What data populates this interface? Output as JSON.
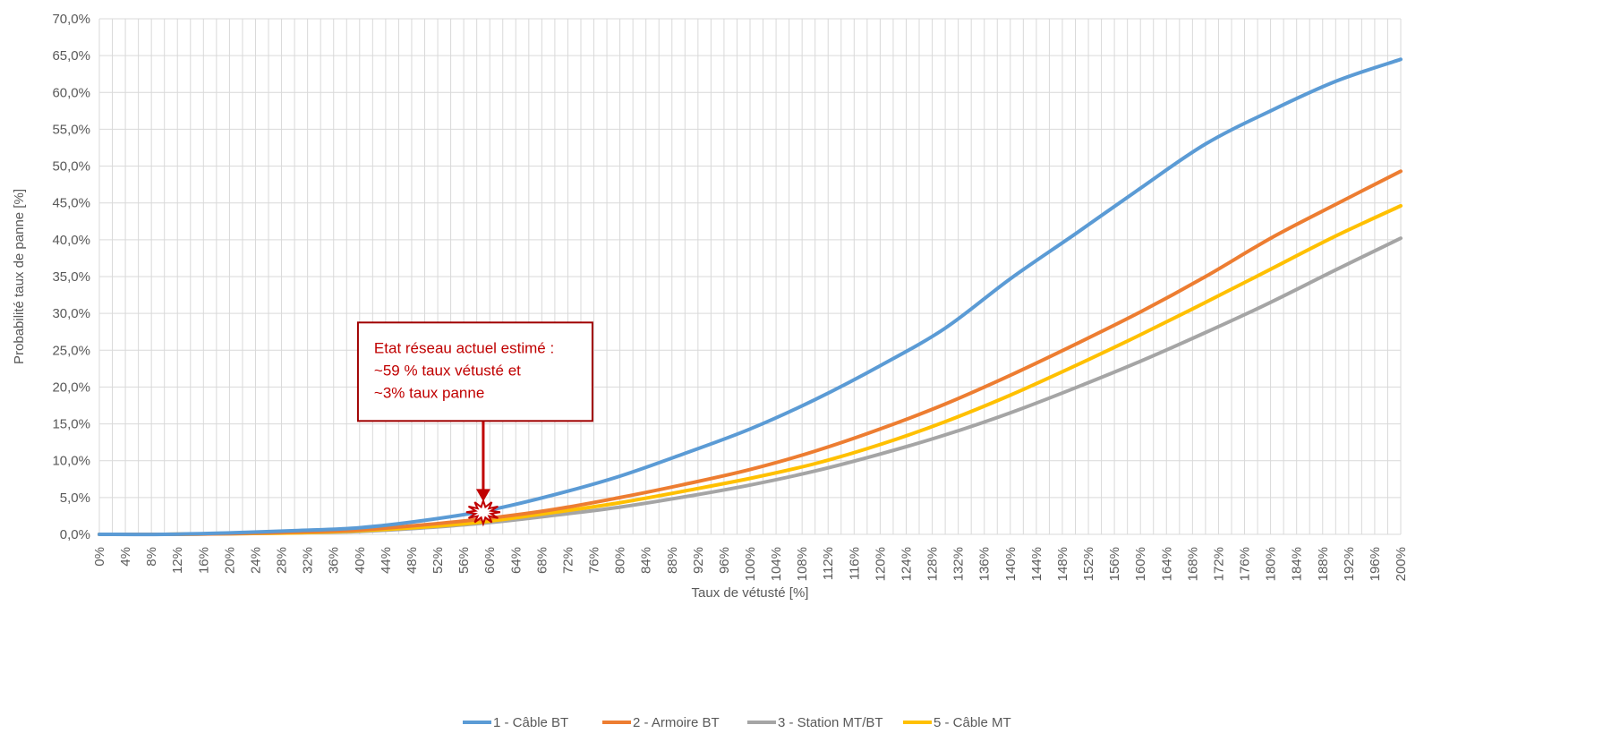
{
  "chart_data": {
    "type": "line",
    "xlabel": "Taux de vétusté [%]",
    "ylabel": "Probabilité taux de panne [%]",
    "xlim": [
      0,
      200
    ],
    "ylim": [
      0,
      70
    ],
    "grid": true,
    "legend_position": "bottom",
    "y_ticks": [
      "0,0%",
      "5,0%",
      "10,0%",
      "15,0%",
      "20,0%",
      "25,0%",
      "30,0%",
      "35,0%",
      "40,0%",
      "45,0%",
      "50,0%",
      "55,0%",
      "60,0%",
      "65,0%",
      "70,0%"
    ],
    "x_ticks": [
      "0%",
      "4%",
      "8%",
      "12%",
      "16%",
      "20%",
      "24%",
      "28%",
      "32%",
      "36%",
      "40%",
      "44%",
      "48%",
      "52%",
      "56%",
      "60%",
      "64%",
      "68%",
      "72%",
      "76%",
      "80%",
      "84%",
      "88%",
      "92%",
      "96%",
      "100%",
      "104%",
      "108%",
      "112%",
      "116%",
      "120%",
      "124%",
      "128%",
      "132%",
      "136%",
      "140%",
      "144%",
      "148%",
      "152%",
      "156%",
      "160%",
      "164%",
      "168%",
      "172%",
      "176%",
      "180%",
      "184%",
      "188%",
      "192%",
      "196%",
      "200%"
    ],
    "x": [
      0,
      10,
      20,
      30,
      40,
      50,
      60,
      70,
      80,
      90,
      100,
      110,
      120,
      130,
      140,
      150,
      160,
      170,
      180,
      190,
      200
    ],
    "series": [
      {
        "name": "1 - Câble BT",
        "color": "#5b9bd5",
        "values": [
          0,
          0,
          0.2,
          0.5,
          0.9,
          1.9,
          3.3,
          5.4,
          7.9,
          11.0,
          14.3,
          18.3,
          22.9,
          28.0,
          34.7,
          40.8,
          47.0,
          53.0,
          57.5,
          61.5,
          64.5
        ]
      },
      {
        "name": "2 - Armoire BT",
        "color": "#ed7d31",
        "values": [
          0,
          0,
          0.1,
          0.3,
          0.6,
          1.3,
          2.2,
          3.4,
          5.0,
          6.8,
          8.8,
          11.3,
          14.3,
          17.7,
          21.6,
          25.8,
          30.2,
          35.0,
          40.2,
          44.8,
          49.3
        ]
      },
      {
        "name": "3 - Station MT/BT",
        "color": "#a5a5a5",
        "values": [
          0,
          0,
          0.1,
          0.2,
          0.4,
          0.9,
          1.6,
          2.6,
          3.7,
          5.1,
          6.7,
          8.6,
          10.9,
          13.5,
          16.5,
          19.9,
          23.5,
          27.4,
          31.5,
          35.9,
          40.2
        ]
      },
      {
        "name": "5 - Câble MT",
        "color": "#ffc000",
        "values": [
          0,
          0,
          0.1,
          0.2,
          0.5,
          1.0,
          1.8,
          3.0,
          4.3,
          5.9,
          7.6,
          9.6,
          12.2,
          15.3,
          18.9,
          22.9,
          27.1,
          31.5,
          36.0,
          40.5,
          44.6
        ]
      }
    ],
    "annotation": {
      "lines": [
        "Etat réseau actuel estimé :",
        "~59 % taux vétusté et",
        "~3% taux panne"
      ],
      "x": 59,
      "y": 3,
      "color": "#c00000"
    }
  }
}
